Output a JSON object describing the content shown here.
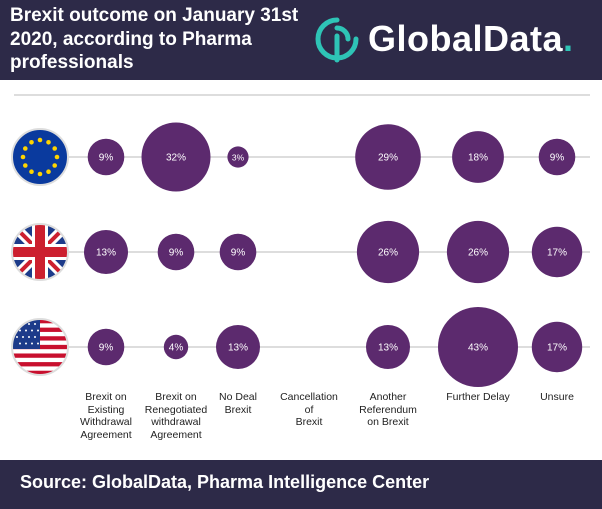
{
  "header": {
    "title": "Brexit outcome on January 31st 2020, according to Pharma professionals",
    "logo_text": "GlobalData",
    "logo_dot": "."
  },
  "footer": {
    "source": "Source:  GlobalData, Pharma Intelligence Center"
  },
  "colors": {
    "header_bg": "#2d2a48",
    "bubble": "#5c2a6e",
    "logo_accent": "#2ec4b6",
    "grid": "#bbbbbb"
  },
  "chart_data": {
    "type": "bubble",
    "categories": [
      "Brexit on\nExisting\nWithdrawal\nAgreement",
      "Brexit on\nRenegotiated\nwithdrawal\nAgreement",
      "No Deal\nBrexit",
      "Cancellation\nof\nBrexit",
      "Another\nReferendum\non Brexit",
      "Further Delay",
      "Unsure"
    ],
    "series": [
      {
        "icon": "eu-flag-icon",
        "values": [
          9,
          32,
          3,
          0,
          29,
          18,
          9
        ]
      },
      {
        "icon": "uk-flag-icon",
        "values": [
          13,
          9,
          9,
          0,
          26,
          26,
          17
        ]
      },
      {
        "icon": "us-flag-icon",
        "values": [
          9,
          4,
          13,
          0,
          13,
          43,
          17
        ]
      }
    ],
    "value_suffix": "%"
  }
}
